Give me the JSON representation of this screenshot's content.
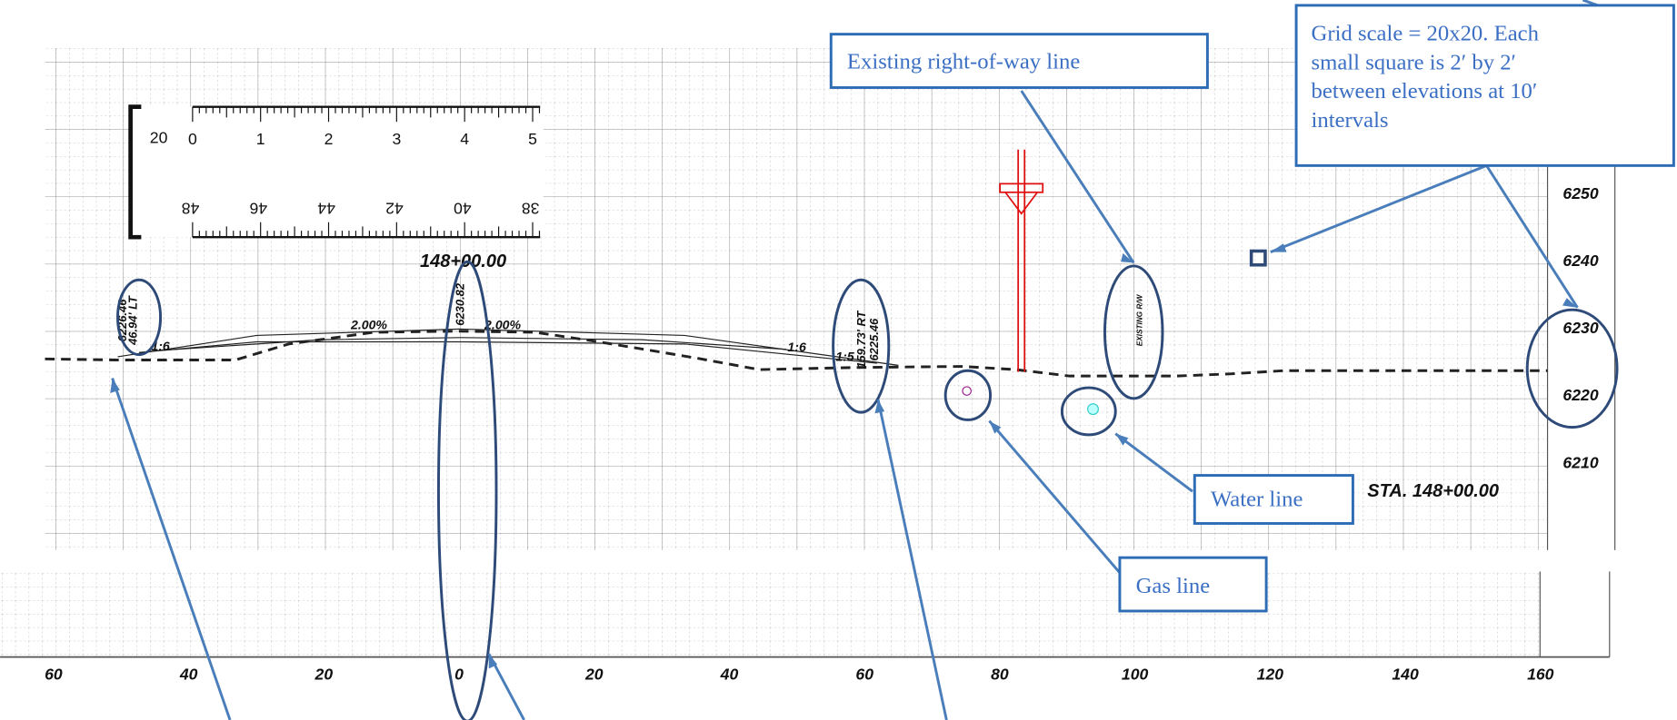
{
  "callouts": {
    "right_of_way": "Existing right-of-way line",
    "grid_scale": [
      "Grid scale =  20x20.  Each",
      "small square is 2′  by 2′",
      "between elevations at 10′",
      "intervals"
    ],
    "water_line": "Water line",
    "gas_line": "Gas line"
  },
  "drawing": {
    "station_top": "148+00.00",
    "station_label": "STA. 148+00.00",
    "elevations": [
      "6250",
      "6240",
      "6230",
      "6220",
      "6210"
    ],
    "offsets": [
      "60",
      "40",
      "20",
      "0",
      "20",
      "40",
      "60",
      "80",
      "100",
      "120",
      "140",
      "160"
    ],
    "slopes": [
      "2.00%",
      "2.00%",
      "1:6",
      "1:6",
      "1:5"
    ],
    "point_labels": [
      "6226.46",
      "46.94' LT",
      "6230.82",
      "159.73' RT",
      "6225.46",
      "EXISTING R/W"
    ],
    "ruler": {
      "scale": "20",
      "top": [
        "0",
        "1",
        "2",
        "3",
        "4",
        "5"
      ],
      "bottom": [
        "48",
        "46",
        "44",
        "42",
        "40",
        "38"
      ]
    }
  }
}
